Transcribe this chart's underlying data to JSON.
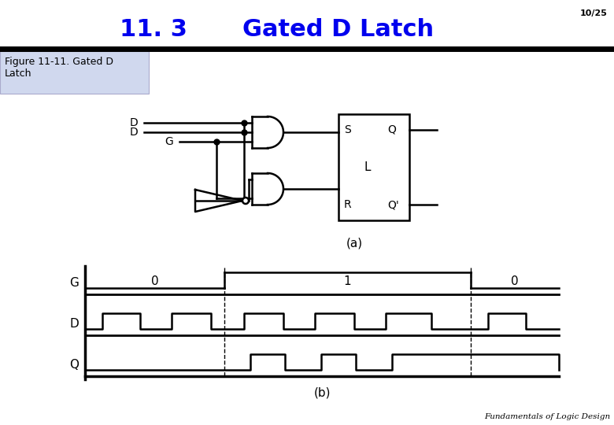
{
  "title_number": "11. 3",
  "title_text": "Gated D Latch",
  "page_num": "10/25",
  "figure_label": "Figure 11-11. Gated D\nLatch",
  "circuit_label_a": "(a)",
  "circuit_label_b": "(b)",
  "footer": "Fundamentals of Logic Design",
  "title_color": "#0000ee",
  "title_fontsize": 22,
  "bg_color": "#ffffff",
  "figure_box_color": "#d0d8ee"
}
